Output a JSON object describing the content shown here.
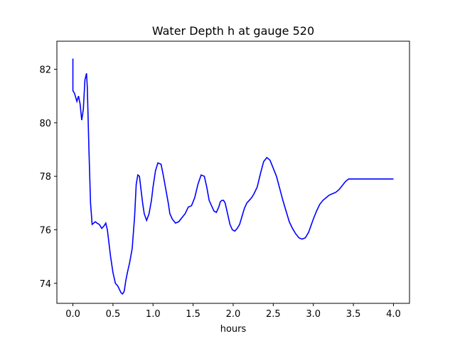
{
  "chart_data": {
    "type": "line",
    "title": "Water Depth h at gauge 520",
    "xlabel": "hours",
    "ylabel": "",
    "xlim": [
      -0.2,
      4.2
    ],
    "ylim": [
      73.25,
      83.05
    ],
    "xticks": [
      0.0,
      0.5,
      1.0,
      1.5,
      2.0,
      2.5,
      3.0,
      3.5,
      4.0
    ],
    "xtick_labels": [
      "0.0",
      "0.5",
      "1.0",
      "1.5",
      "2.0",
      "2.5",
      "3.0",
      "3.5",
      "4.0"
    ],
    "yticks": [
      74,
      76,
      78,
      80,
      82
    ],
    "ytick_labels": [
      "74",
      "76",
      "78",
      "80",
      "82"
    ],
    "grid": false,
    "series": [
      {
        "name": "",
        "color": "#0000ff",
        "x": [
          0.0,
          0.0,
          0.0,
          0.02,
          0.05,
          0.07,
          0.09,
          0.11,
          0.13,
          0.15,
          0.17,
          0.18,
          0.2,
          0.22,
          0.24,
          0.26,
          0.28,
          0.3,
          0.33,
          0.36,
          0.39,
          0.41,
          0.43,
          0.45,
          0.47,
          0.5,
          0.53,
          0.56,
          0.6,
          0.62,
          0.64,
          0.66,
          0.68,
          0.71,
          0.74,
          0.77,
          0.79,
          0.81,
          0.83,
          0.85,
          0.87,
          0.89,
          0.92,
          0.95,
          0.98,
          1.0,
          1.03,
          1.06,
          1.1,
          1.13,
          1.16,
          1.19,
          1.21,
          1.24,
          1.28,
          1.32,
          1.36,
          1.4,
          1.44,
          1.48,
          1.52,
          1.56,
          1.6,
          1.64,
          1.67,
          1.7,
          1.73,
          1.76,
          1.79,
          1.82,
          1.84,
          1.86,
          1.88,
          1.9,
          1.93,
          1.96,
          1.99,
          2.02,
          2.05,
          2.08,
          2.11,
          2.14,
          2.17,
          2.2,
          2.23,
          2.26,
          2.3,
          2.34,
          2.38,
          2.42,
          2.46,
          2.5,
          2.54,
          2.58,
          2.62,
          2.66,
          2.7,
          2.74,
          2.78,
          2.82,
          2.86,
          2.9,
          2.94,
          2.97,
          3.0,
          3.04,
          3.08,
          3.12,
          3.16,
          3.2,
          3.24,
          3.28,
          3.32,
          3.36,
          3.4,
          3.44,
          3.48,
          3.52,
          3.56,
          3.6,
          3.64,
          3.68,
          3.72,
          3.76,
          3.8,
          3.84,
          3.88,
          3.92,
          3.96,
          4.0
        ],
        "y": [
          82.4,
          81.9,
          81.2,
          81.1,
          80.8,
          81.0,
          80.7,
          80.1,
          80.5,
          81.6,
          81.85,
          81.3,
          79.0,
          77.0,
          76.2,
          76.25,
          76.3,
          76.25,
          76.2,
          76.05,
          76.15,
          76.25,
          76.0,
          75.5,
          75.0,
          74.4,
          74.0,
          73.9,
          73.65,
          73.6,
          73.7,
          74.1,
          74.4,
          74.8,
          75.3,
          76.5,
          77.7,
          78.05,
          78.0,
          77.5,
          77.0,
          76.6,
          76.35,
          76.6,
          77.1,
          77.6,
          78.2,
          78.5,
          78.45,
          78.0,
          77.5,
          77.0,
          76.6,
          76.4,
          76.25,
          76.3,
          76.45,
          76.6,
          76.85,
          76.9,
          77.2,
          77.7,
          78.05,
          78.0,
          77.6,
          77.1,
          76.9,
          76.7,
          76.65,
          76.85,
          77.05,
          77.1,
          77.1,
          77.0,
          76.6,
          76.2,
          76.0,
          75.95,
          76.05,
          76.2,
          76.5,
          76.8,
          77.0,
          77.1,
          77.2,
          77.35,
          77.6,
          78.1,
          78.55,
          78.7,
          78.6,
          78.3,
          78.0,
          77.55,
          77.1,
          76.7,
          76.3,
          76.05,
          75.85,
          75.7,
          75.65,
          75.7,
          75.9,
          76.15,
          76.4,
          76.7,
          76.95,
          77.1,
          77.2,
          77.3,
          77.35,
          77.4,
          77.5,
          77.65,
          77.8,
          77.9,
          77.9,
          77.9,
          77.9,
          77.9,
          77.9,
          77.9,
          77.9,
          77.9,
          77.9,
          77.9,
          77.9,
          77.9,
          77.9,
          77.9
        ]
      }
    ]
  }
}
